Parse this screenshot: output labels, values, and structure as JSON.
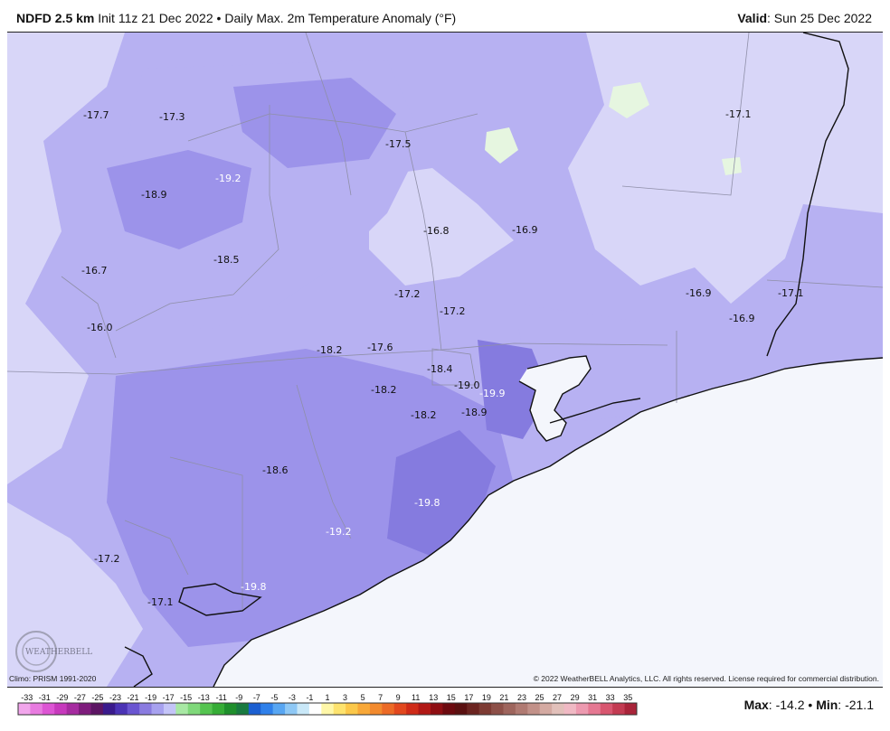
{
  "header": {
    "product": "NDFD 2.5 km",
    "init": "Init 11z 21 Dec 2022",
    "separator": "•",
    "title": "Daily Max. 2m Temperature Anomaly (°F)",
    "valid_label": "Valid",
    "valid_value": ": Sun 25 Dec 2022"
  },
  "map": {
    "values": [
      "-17.7",
      "-17.3",
      "-17.5",
      "-17.1",
      "-19.2",
      "-18.9",
      "-16.8",
      "-16.9",
      "-18.5",
      "-16.7",
      "-17.2",
      "-17.2",
      "-16.9",
      "-17.1",
      "-16.9",
      "-16.0",
      "-18.2",
      "-17.6",
      "-18.4",
      "-19.0",
      "-19.9",
      "-18.2",
      "-18.2",
      "-18.9",
      "-18.6",
      "-19.8",
      "-19.2",
      "-17.2",
      "-19.8",
      "-17.1"
    ],
    "colors": {
      "ocean": "#f4f6fc",
      "light": "#d8d6f8",
      "mid": "#b7b1f2",
      "dark": "#9c93ea",
      "darker": "#857bdf",
      "green": "#e6f6e0",
      "boundary": "#8f8fa8",
      "coast": "#111111"
    },
    "logo_text": "WEATHERBELL"
  },
  "footer": {
    "climo": "Climo: PRISM 1991-2020",
    "copyright": "© 2022 WeatherBELL Analytics, LLC. All rights reserved. License required for commercial distribution."
  },
  "colorbar": {
    "labels": [
      "-33",
      "-31",
      "-29",
      "-27",
      "-25",
      "-23",
      "-21",
      "-19",
      "-17",
      "-15",
      "-13",
      "-11",
      "-9",
      "-7",
      "-5",
      "-3",
      "-1",
      "1",
      "3",
      "5",
      "7",
      "9",
      "11",
      "13",
      "15",
      "17",
      "19",
      "21",
      "23",
      "25",
      "27",
      "29",
      "31",
      "33",
      "35"
    ],
    "colors": [
      "#f2a6ec",
      "#e87be0",
      "#dd55d4",
      "#c739bd",
      "#a62ba0",
      "#7e1c7c",
      "#5c1463",
      "#3a1a8c",
      "#4b33b5",
      "#6a55d1",
      "#8a7be0",
      "#a7a1ef",
      "#c4c4f8",
      "#a8e8a4",
      "#7fd87a",
      "#55c450",
      "#36ad36",
      "#1f8f2c",
      "#197a40",
      "#1b5fd1",
      "#2f80ea",
      "#58a6f2",
      "#8ec8f5",
      "#c9e8f8",
      "#ffffff",
      "#fff7a8",
      "#fde36e",
      "#fbc84a",
      "#f8a838",
      "#f28a2e",
      "#ec6a26",
      "#e2481e",
      "#cf2b18",
      "#b11815",
      "#8e0e12",
      "#6c0a0f",
      "#5a1010",
      "#6b2420",
      "#7d3b33",
      "#8d5048",
      "#9e655d",
      "#b07a72",
      "#c29189",
      "#d4aaa2",
      "#e2c0ba",
      "#f0b9c4",
      "#ed9ab0",
      "#e57892",
      "#d8566f",
      "#c33b52",
      "#a9243a"
    ]
  },
  "stats": {
    "max_label": "Max",
    "max_value": ": -14.2",
    "separator": " • ",
    "min_label": "Min",
    "min_value": ": -21.1"
  }
}
